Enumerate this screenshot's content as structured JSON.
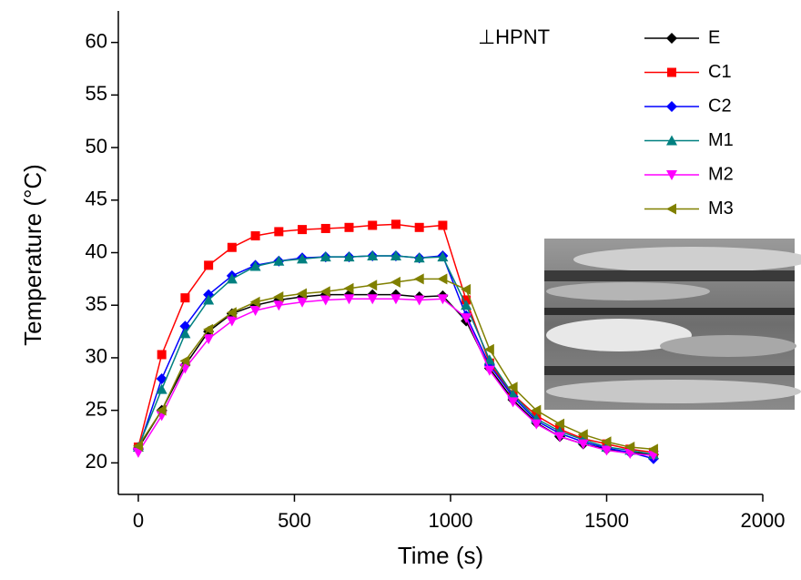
{
  "chart_data": {
    "type": "line",
    "annotation": "⊥HPNT",
    "xlabel": "Time (s)",
    "ylabel": "Temperature (°C)",
    "x": [
      0,
      75,
      150,
      225,
      300,
      375,
      450,
      525,
      600,
      675,
      750,
      825,
      900,
      975,
      1050,
      1125,
      1200,
      1275,
      1350,
      1425,
      1500,
      1575,
      1650
    ],
    "xlim": [
      -64,
      2000
    ],
    "xticks": [
      0,
      500,
      1000,
      1500,
      2000
    ],
    "ylim": [
      17,
      63
    ],
    "yticks": [
      20,
      25,
      30,
      35,
      40,
      45,
      50,
      55,
      60
    ],
    "series": [
      {
        "name": "E",
        "color": "#000000",
        "marker": "diamond",
        "values": [
          21.4,
          25,
          29.3,
          32.5,
          34.2,
          35.0,
          35.5,
          35.8,
          36.0,
          36.0,
          36.0,
          36.0,
          35.8,
          35.9,
          33.5,
          29,
          26,
          23.8,
          22.5,
          21.8,
          21.3,
          21,
          20.8
        ]
      },
      {
        "name": "C1",
        "color": "#ff0000",
        "marker": "square",
        "values": [
          21.5,
          30.3,
          35.7,
          38.8,
          40.5,
          41.6,
          42.0,
          42.2,
          42.3,
          42.4,
          42.6,
          42.7,
          42.4,
          42.6,
          35.5,
          29.5,
          26.5,
          24.5,
          23.2,
          22.3,
          21.8,
          21.3,
          21.0
        ]
      },
      {
        "name": "C2",
        "color": "#0000ff",
        "marker": "diamond",
        "values": [
          21.3,
          28,
          33,
          36,
          37.8,
          38.8,
          39.2,
          39.5,
          39.6,
          39.6,
          39.7,
          39.7,
          39.5,
          39.7,
          34,
          29.3,
          26.3,
          24,
          22.8,
          22,
          21.4,
          21,
          20.4
        ]
      },
      {
        "name": "M1",
        "color": "#008080",
        "marker": "triangle-up",
        "values": [
          21.5,
          27,
          32.3,
          35.5,
          37.5,
          38.7,
          39.2,
          39.4,
          39.6,
          39.6,
          39.7,
          39.7,
          39.5,
          39.6,
          35,
          29.8,
          26.5,
          24.2,
          23,
          22.2,
          21.5,
          21.2,
          20.8
        ]
      },
      {
        "name": "M2",
        "color": "#ff00ff",
        "marker": "triangle-down",
        "values": [
          21,
          24.5,
          29,
          31.8,
          33.5,
          34.5,
          35,
          35.3,
          35.5,
          35.6,
          35.6,
          35.6,
          35.5,
          35.6,
          33.8,
          28.8,
          25.8,
          23.7,
          22.5,
          21.8,
          21.2,
          20.9,
          20.7
        ]
      },
      {
        "name": "M3",
        "color": "#808000",
        "marker": "triangle-left",
        "values": [
          21.6,
          25,
          29.7,
          32.7,
          34.3,
          35.3,
          35.8,
          36.1,
          36.3,
          36.6,
          36.9,
          37.2,
          37.5,
          37.5,
          36.5,
          30.8,
          27.2,
          25,
          23.7,
          22.7,
          22,
          21.5,
          21.3
        ]
      }
    ]
  }
}
